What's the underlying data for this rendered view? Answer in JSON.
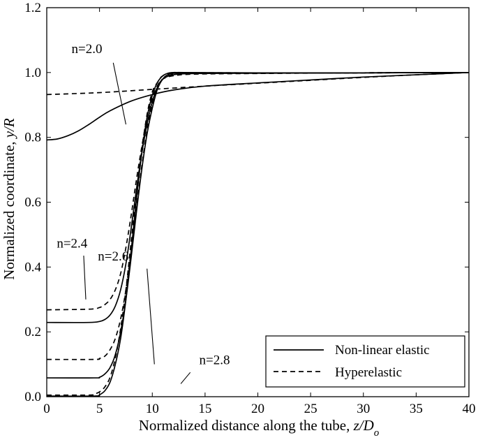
{
  "chart_data": {
    "type": "line",
    "title": "",
    "xlabel_text": "Normalized distance along the tube, ",
    "xlabel_math": "z/D",
    "xlabel_sub": "o",
    "ylabel_text": "Normalized coordinate, ",
    "ylabel_math": "y/R",
    "xlim": [
      0,
      40
    ],
    "ylim": [
      0,
      1.2
    ],
    "xticks": [
      0,
      5,
      10,
      15,
      20,
      25,
      30,
      35,
      40
    ],
    "yticks": [
      0.0,
      0.2,
      0.4,
      0.6,
      0.8,
      1.0,
      1.2
    ],
    "ytick_labels": [
      "0.0",
      "0.2",
      "0.4",
      "0.6",
      "0.8",
      "1.0",
      "1.2"
    ],
    "grid": false,
    "legend_position": "bottom-right",
    "legend": [
      {
        "label": "Non-linear elastic",
        "style": "solid"
      },
      {
        "label": "Hyperelastic",
        "style": "dashed"
      }
    ],
    "series": [
      {
        "group": "n=2.0",
        "style": "solid",
        "points": [
          [
            0,
            0.792
          ],
          [
            1,
            0.795
          ],
          [
            2,
            0.805
          ],
          [
            3,
            0.82
          ],
          [
            4,
            0.84
          ],
          [
            5,
            0.862
          ],
          [
            6,
            0.882
          ],
          [
            8,
            0.912
          ],
          [
            10,
            0.932
          ],
          [
            12,
            0.946
          ],
          [
            15,
            0.958
          ],
          [
            20,
            0.968
          ],
          [
            25,
            0.977
          ],
          [
            30,
            0.986
          ],
          [
            35,
            0.993
          ],
          [
            40,
            1.0
          ]
        ]
      },
      {
        "group": "n=2.0",
        "style": "dashed",
        "points": [
          [
            0,
            0.932
          ],
          [
            5,
            0.938
          ],
          [
            10,
            0.948
          ],
          [
            15,
            0.958
          ],
          [
            20,
            0.967
          ],
          [
            25,
            0.976
          ],
          [
            30,
            0.985
          ],
          [
            35,
            0.993
          ],
          [
            40,
            1.0
          ]
        ]
      },
      {
        "group": "n=2.4",
        "style": "solid",
        "points": [
          [
            0,
            0.229
          ],
          [
            4,
            0.229
          ],
          [
            5,
            0.232
          ],
          [
            5.5,
            0.238
          ],
          [
            6,
            0.252
          ],
          [
            6.5,
            0.28
          ],
          [
            7,
            0.33
          ],
          [
            7.5,
            0.41
          ],
          [
            8,
            0.52
          ],
          [
            8.5,
            0.64
          ],
          [
            9,
            0.75
          ],
          [
            9.5,
            0.84
          ],
          [
            10,
            0.91
          ],
          [
            10.5,
            0.955
          ],
          [
            11,
            0.98
          ],
          [
            12,
            0.993
          ],
          [
            14,
            0.997
          ],
          [
            20,
            0.998
          ],
          [
            30,
            0.999
          ],
          [
            40,
            1.0
          ]
        ]
      },
      {
        "group": "n=2.4",
        "style": "dashed",
        "points": [
          [
            0,
            0.268
          ],
          [
            4,
            0.27
          ],
          [
            5,
            0.275
          ],
          [
            5.5,
            0.284
          ],
          [
            6,
            0.3
          ],
          [
            6.5,
            0.33
          ],
          [
            7,
            0.38
          ],
          [
            7.5,
            0.46
          ],
          [
            8,
            0.56
          ],
          [
            8.5,
            0.67
          ],
          [
            9,
            0.77
          ],
          [
            9.5,
            0.86
          ],
          [
            10,
            0.92
          ],
          [
            10.5,
            0.96
          ],
          [
            11,
            0.98
          ],
          [
            12,
            0.99
          ],
          [
            14,
            0.995
          ],
          [
            20,
            0.997
          ],
          [
            30,
            0.999
          ],
          [
            40,
            1.0
          ]
        ]
      },
      {
        "group": "n=2.6",
        "style": "solid",
        "points": [
          [
            0,
            0.058
          ],
          [
            4.5,
            0.058
          ],
          [
            5,
            0.06
          ],
          [
            5.5,
            0.07
          ],
          [
            6,
            0.09
          ],
          [
            6.5,
            0.13
          ],
          [
            7,
            0.2
          ],
          [
            7.5,
            0.3
          ],
          [
            8,
            0.43
          ],
          [
            8.5,
            0.57
          ],
          [
            9,
            0.7
          ],
          [
            9.5,
            0.81
          ],
          [
            10,
            0.89
          ],
          [
            10.5,
            0.95
          ],
          [
            11,
            0.98
          ],
          [
            11.5,
            0.993
          ],
          [
            12.5,
            0.998
          ],
          [
            20,
            0.998
          ],
          [
            30,
            0.999
          ],
          [
            40,
            1.0
          ]
        ]
      },
      {
        "group": "n=2.6",
        "style": "dashed",
        "points": [
          [
            0,
            0.115
          ],
          [
            4.5,
            0.115
          ],
          [
            5,
            0.118
          ],
          [
            5.5,
            0.125
          ],
          [
            6,
            0.145
          ],
          [
            6.5,
            0.18
          ],
          [
            7,
            0.24
          ],
          [
            7.5,
            0.33
          ],
          [
            8,
            0.45
          ],
          [
            8.5,
            0.58
          ],
          [
            9,
            0.71
          ],
          [
            9.5,
            0.82
          ],
          [
            10,
            0.9
          ],
          [
            10.5,
            0.95
          ],
          [
            11,
            0.98
          ],
          [
            12,
            0.995
          ],
          [
            14,
            0.998
          ],
          [
            20,
            0.998
          ],
          [
            30,
            0.999
          ],
          [
            40,
            1.0
          ]
        ]
      },
      {
        "group": "n=2.8",
        "style": "solid",
        "points": [
          [
            0,
            0.002
          ],
          [
            4.5,
            0.002
          ],
          [
            5,
            0.006
          ],
          [
            5.5,
            0.018
          ],
          [
            6,
            0.045
          ],
          [
            6.5,
            0.1
          ],
          [
            7,
            0.18
          ],
          [
            7.5,
            0.3
          ],
          [
            8,
            0.45
          ],
          [
            8.5,
            0.61
          ],
          [
            9,
            0.75
          ],
          [
            9.5,
            0.86
          ],
          [
            10,
            0.93
          ],
          [
            10.5,
            0.97
          ],
          [
            11,
            0.99
          ],
          [
            11.5,
            0.998
          ],
          [
            12,
            1.0
          ],
          [
            13,
            1.0
          ],
          [
            20,
            0.999
          ],
          [
            30,
            0.999
          ],
          [
            40,
            1.0
          ]
        ]
      },
      {
        "group": "n=2.8",
        "style": "dashed",
        "points": [
          [
            0,
            0.005
          ],
          [
            4,
            0.005
          ],
          [
            4.5,
            0.008
          ],
          [
            5,
            0.015
          ],
          [
            5.5,
            0.03
          ],
          [
            6,
            0.06
          ],
          [
            6.5,
            0.12
          ],
          [
            7,
            0.21
          ],
          [
            7.5,
            0.33
          ],
          [
            8,
            0.48
          ],
          [
            8.5,
            0.63
          ],
          [
            9,
            0.76
          ],
          [
            9.5,
            0.87
          ],
          [
            10,
            0.94
          ],
          [
            10.5,
            0.97
          ],
          [
            11,
            0.99
          ],
          [
            12,
            0.998
          ],
          [
            14,
            0.999
          ],
          [
            20,
            0.999
          ],
          [
            30,
            0.999
          ],
          [
            40,
            1.0
          ]
        ]
      }
    ],
    "annotations": [
      {
        "text": "n=2.0",
        "label_at": [
          3.8,
          1.06
        ],
        "arrow_from": [
          6.3,
          1.03
        ],
        "arrow_to": [
          7.5,
          0.84
        ]
      },
      {
        "text": "n=2.4",
        "label_at": [
          2.4,
          0.46
        ],
        "arrow_from": [
          3.5,
          0.435
        ],
        "arrow_to": [
          3.7,
          0.3
        ]
      },
      {
        "text": "n=2.6",
        "label_at": [
          6.3,
          0.42
        ],
        "arrow_from": [
          9.5,
          0.395
        ],
        "arrow_to": [
          10.2,
          0.1
        ]
      },
      {
        "text": "n=2.8",
        "label_at": [
          15.9,
          0.1
        ],
        "arrow_from": [
          13.6,
          0.075
        ],
        "arrow_to": [
          12.7,
          0.04
        ]
      }
    ]
  }
}
